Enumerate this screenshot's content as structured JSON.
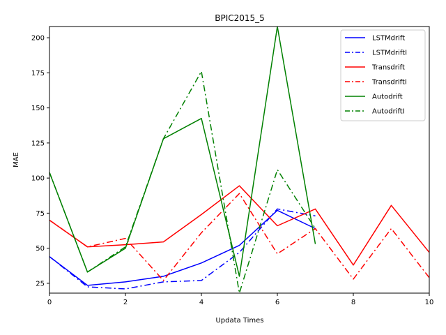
{
  "chart_data": {
    "type": "line",
    "title": "BPIC2015_5",
    "xlabel": "Updata Times",
    "ylabel": "MAE",
    "xlim": [
      0,
      10
    ],
    "ylim": [
      18,
      208
    ],
    "xticks": [
      0,
      2,
      4,
      6,
      8,
      10
    ],
    "yticks": [
      25,
      50,
      75,
      100,
      125,
      150,
      175,
      200
    ],
    "grid": false,
    "legend_position": "top-right",
    "series": [
      {
        "name": "LSTMdrift",
        "color": "#0000ff",
        "style": "solid",
        "x": [
          0,
          1,
          2,
          3,
          4,
          5,
          6,
          7
        ],
        "y": [
          44,
          23.5,
          26,
          30,
          39.5,
          52,
          77,
          64
        ]
      },
      {
        "name": "LSTMdriftI",
        "color": "#0000ff",
        "style": "dashdot",
        "x": [
          0,
          1,
          2,
          3,
          4,
          5,
          6,
          7
        ],
        "y": [
          44,
          22.5,
          21,
          26,
          27,
          47,
          78,
          73
        ]
      },
      {
        "name": "Transdrift",
        "color": "#ff0000",
        "style": "solid",
        "x": [
          0,
          1,
          2,
          3,
          4,
          5,
          6,
          7,
          8,
          9,
          10
        ],
        "y": [
          70,
          51,
          52.5,
          54.5,
          74,
          94.5,
          66,
          78,
          38,
          80.5,
          47
        ]
      },
      {
        "name": "TransdriftI",
        "color": "#ff0000",
        "style": "dashdot",
        "x": [
          0,
          1,
          2,
          3,
          4,
          5,
          6,
          7,
          8,
          9,
          10
        ],
        "y": [
          70,
          51,
          57,
          27,
          61,
          89,
          46,
          64,
          28,
          64,
          29
        ]
      },
      {
        "name": "Autodrift",
        "color": "#008000",
        "style": "solid",
        "x": [
          0,
          1,
          2,
          3,
          4,
          5,
          6,
          7
        ],
        "y": [
          104,
          33,
          50,
          128,
          142.5,
          30,
          208,
          53
        ]
      },
      {
        "name": "AutodriftI",
        "color": "#008000",
        "style": "dashdot",
        "x": [
          0,
          1,
          2,
          3,
          4,
          5,
          6,
          7
        ],
        "y": [
          104,
          33,
          51,
          128,
          176,
          18,
          106,
          64
        ]
      }
    ]
  }
}
